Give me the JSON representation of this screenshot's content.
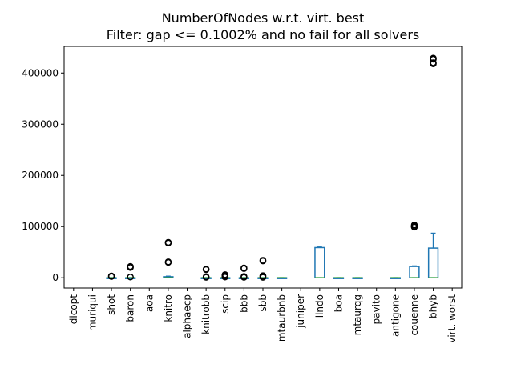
{
  "chart_data": {
    "type": "box",
    "title": "NumberOfNodes w.r.t. virt. best",
    "subtitle": "Filter: gap <= 0.1002% and no fail for all solvers",
    "xlabel": "",
    "ylabel": "",
    "ylim": [
      -20000,
      452000
    ],
    "yticks": [
      0,
      100000,
      200000,
      300000,
      400000
    ],
    "ytick_labels": [
      "0",
      "100000",
      "200000",
      "300000",
      "400000"
    ],
    "grid": false,
    "colors": {
      "box": "#1f77b4",
      "median": "#2ca02c",
      "flier": "#000000",
      "axis": "#000000"
    },
    "categories": [
      "dicopt",
      "muriqui",
      "shot",
      "baron",
      "aoa",
      "knitro",
      "alphaecp",
      "knitrobb",
      "scip",
      "bbb",
      "sbb",
      "mtaurbnb",
      "juniper",
      "lindo",
      "boa",
      "mtaurqg",
      "pavito",
      "antigone",
      "couenne",
      "bhyb",
      "virt. worst"
    ],
    "boxes": [
      null,
      null,
      {
        "q1": 0,
        "median": 0,
        "q3": 0,
        "whislo": 0,
        "whishi": 0,
        "fliers": [
          3500,
          2500
        ]
      },
      {
        "q1": 0,
        "median": 0,
        "q3": 0,
        "whislo": 0,
        "whishi": 0,
        "fliers": [
          22000,
          20000,
          1500
        ]
      },
      null,
      {
        "q1": 0,
        "median": 0,
        "q3": 2000,
        "whislo": 0,
        "whishi": 3000,
        "fliers": [
          69000,
          68000,
          31000,
          30000
        ]
      },
      null,
      {
        "q1": 0,
        "median": 0,
        "q3": 0,
        "whislo": 0,
        "whishi": 0,
        "fliers": [
          17000,
          16000,
          2000,
          1000
        ]
      },
      {
        "q1": 0,
        "median": 0,
        "q3": 0,
        "whislo": 0,
        "whishi": 0,
        "fliers": [
          6000,
          5000,
          3000,
          1500
        ]
      },
      {
        "q1": 0,
        "median": 0,
        "q3": 0,
        "whislo": 0,
        "whishi": 0,
        "fliers": [
          19000,
          18000,
          2500,
          1000
        ]
      },
      {
        "q1": 0,
        "median": 0,
        "q3": 0,
        "whislo": 0,
        "whishi": 0,
        "fliers": [
          34000,
          33000,
          4000,
          3000,
          1000
        ]
      },
      {
        "q1": 0,
        "median": 0,
        "q3": 0,
        "whislo": 0,
        "whishi": 0,
        "fliers": []
      },
      null,
      {
        "q1": 0,
        "median": 0,
        "q3": 59000,
        "whislo": 0,
        "whishi": 60000,
        "fliers": []
      },
      {
        "q1": 0,
        "median": 0,
        "q3": 0,
        "whislo": 0,
        "whishi": 0,
        "fliers": []
      },
      {
        "q1": 0,
        "median": 0,
        "q3": 0,
        "whislo": 0,
        "whishi": 0,
        "fliers": []
      },
      null,
      {
        "q1": 0,
        "median": 0,
        "q3": 0,
        "whislo": 0,
        "whishi": 0,
        "fliers": []
      },
      {
        "q1": 0,
        "median": 0,
        "q3": 22000,
        "whislo": 0,
        "whishi": 23000,
        "fliers": [
          103000,
          101000,
          100000,
          99000
        ]
      },
      {
        "q1": 0,
        "median": 0,
        "q3": 58000,
        "whislo": 0,
        "whishi": 87000,
        "fliers": [
          429000,
          427000,
          420000,
          418000
        ]
      },
      null
    ]
  }
}
